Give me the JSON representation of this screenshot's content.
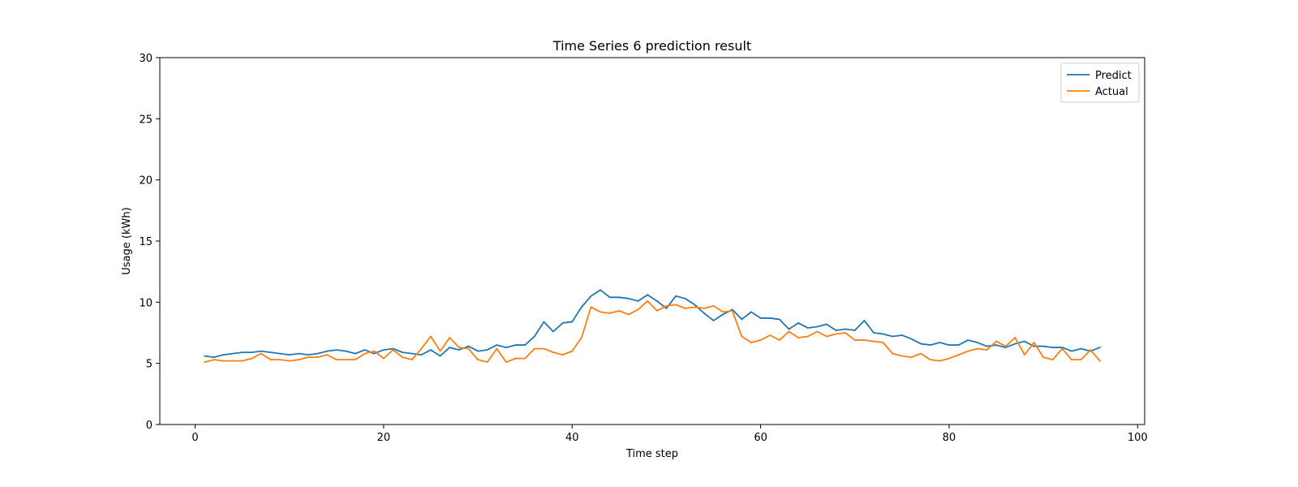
{
  "chart_data": {
    "type": "line",
    "title": "Time Series 6 prediction result",
    "xlabel": "Time step",
    "ylabel": "Usage (kWh)",
    "xlim": [
      -3.75,
      100.75
    ],
    "ylim": [
      0,
      30
    ],
    "xticks": [
      0,
      20,
      40,
      60,
      80,
      100
    ],
    "yticks": [
      0,
      5,
      10,
      15,
      20,
      25,
      30
    ],
    "grid": false,
    "legend": "top-right",
    "x_start": 1,
    "series": [
      {
        "name": "Predict",
        "color": "#1f77b4",
        "values": [
          5.6,
          5.5,
          5.7,
          5.8,
          5.9,
          5.9,
          6.0,
          5.9,
          5.8,
          5.7,
          5.8,
          5.7,
          5.8,
          6.0,
          6.1,
          6.0,
          5.8,
          6.1,
          5.8,
          6.1,
          6.2,
          5.9,
          5.8,
          5.7,
          6.1,
          5.6,
          6.3,
          6.1,
          6.4,
          6.0,
          6.1,
          6.5,
          6.3,
          6.5,
          6.5,
          7.2,
          8.4,
          7.6,
          8.3,
          8.4,
          9.6,
          10.5,
          11.0,
          10.4,
          10.4,
          10.3,
          10.1,
          10.6,
          10.1,
          9.5,
          10.5,
          10.3,
          9.8,
          9.1,
          8.5,
          9.0,
          9.4,
          8.6,
          9.2,
          8.7,
          8.7,
          8.6,
          7.8,
          8.3,
          7.9,
          8.0,
          8.2,
          7.7,
          7.8,
          7.7,
          8.5,
          7.5,
          7.4,
          7.2,
          7.3,
          7.0,
          6.6,
          6.5,
          6.7,
          6.5,
          6.5,
          6.9,
          6.7,
          6.4,
          6.5,
          6.3,
          6.6,
          6.8,
          6.4,
          6.4,
          6.3,
          6.3,
          6.0,
          6.2,
          6.0,
          6.3
        ]
      },
      {
        "name": "Actual",
        "color": "#ff7f0e",
        "values": [
          5.1,
          5.3,
          5.2,
          5.2,
          5.2,
          5.4,
          5.8,
          5.3,
          5.3,
          5.2,
          5.3,
          5.5,
          5.5,
          5.7,
          5.3,
          5.3,
          5.3,
          5.8,
          6.0,
          5.4,
          6.1,
          5.5,
          5.3,
          6.2,
          7.2,
          6.0,
          7.1,
          6.3,
          6.2,
          5.3,
          5.1,
          6.2,
          5.1,
          5.4,
          5.4,
          6.2,
          6.2,
          5.9,
          5.7,
          6.0,
          7.1,
          9.6,
          9.2,
          9.1,
          9.3,
          9.0,
          9.4,
          10.1,
          9.3,
          9.7,
          9.8,
          9.5,
          9.6,
          9.5,
          9.7,
          9.2,
          9.3,
          7.2,
          6.7,
          6.9,
          7.3,
          6.9,
          7.6,
          7.1,
          7.2,
          7.6,
          7.2,
          7.4,
          7.5,
          6.9,
          6.9,
          6.8,
          6.7,
          5.8,
          5.6,
          5.5,
          5.8,
          5.3,
          5.2,
          5.4,
          5.7,
          6.0,
          6.2,
          6.1,
          6.8,
          6.4,
          7.1,
          5.7,
          6.7,
          5.5,
          5.3,
          6.2,
          5.3,
          5.3,
          6.1,
          5.2
        ]
      }
    ]
  }
}
